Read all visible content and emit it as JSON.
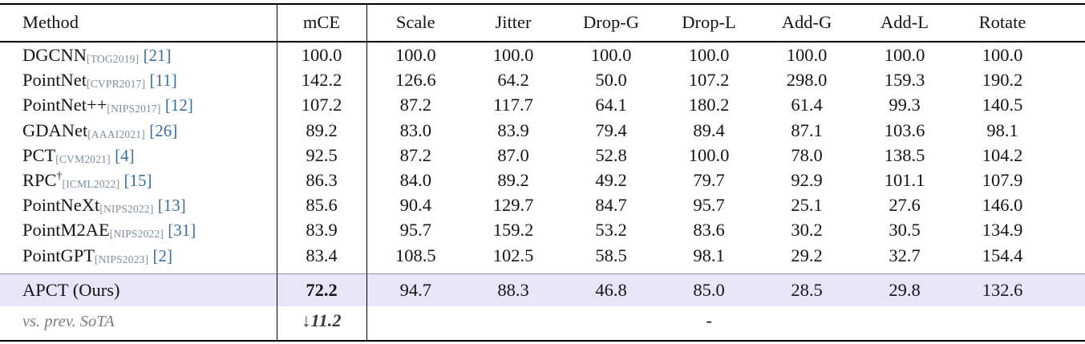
{
  "colors": {
    "cite-color": "#3c6e9f",
    "venue-color": "#7d8c9d",
    "highlight": "#e9e5f8"
  },
  "table": {
    "headers": [
      "Method",
      "mCE",
      "Scale",
      "Jitter",
      "Drop-G",
      "Drop-L",
      "Add-G",
      "Add-L",
      "Rotate"
    ],
    "rows": [
      {
        "method": "DGCNN",
        "venue": "[TOG2019]",
        "cite": "[21]",
        "values": [
          "100.0",
          "100.0",
          "100.0",
          "100.0",
          "100.0",
          "100.0",
          "100.0",
          "100.0"
        ]
      },
      {
        "method": "PointNet",
        "venue": "[CVPR2017]",
        "cite": "[11]",
        "values": [
          "142.2",
          "126.6",
          "64.2",
          "50.0",
          "107.2",
          "298.0",
          "159.3",
          "190.2"
        ]
      },
      {
        "method": "PointNet++",
        "venue": "[NIPS2017]",
        "cite": "[12]",
        "values": [
          "107.2",
          "87.2",
          "117.7",
          "64.1",
          "180.2",
          "61.4",
          "99.3",
          "140.5"
        ]
      },
      {
        "method": "GDANet",
        "venue": "[AAAI2021]",
        "cite": "[26]",
        "values": [
          "89.2",
          "83.0",
          "83.9",
          "79.4",
          "89.4",
          "87.1",
          "103.6",
          "98.1"
        ]
      },
      {
        "method": "PCT",
        "venue": "[CVM2021]",
        "cite": "[4]",
        "values": [
          "92.5",
          "87.2",
          "87.0",
          "52.8",
          "100.0",
          "78.0",
          "138.5",
          "104.2"
        ]
      },
      {
        "method": "RPC",
        "sup": "†",
        "venue": "[ICML2022]",
        "cite": "[15]",
        "values": [
          "86.3",
          "84.0",
          "89.2",
          "49.2",
          "79.7",
          "92.9",
          "101.1",
          "107.9"
        ]
      },
      {
        "method": "PointNeXt",
        "venue": "[NIPS2022]",
        "cite": "[13]",
        "values": [
          "85.6",
          "90.4",
          "129.7",
          "84.7",
          "95.7",
          "25.1",
          "27.6",
          "146.0"
        ]
      },
      {
        "method": "PointM2AE",
        "venue": "[NIPS2022]",
        "cite": "[31]",
        "values": [
          "83.9",
          "95.7",
          "159.2",
          "53.2",
          "83.6",
          "30.2",
          "30.5",
          "134.9"
        ]
      },
      {
        "method": "PointGPT",
        "venue": "[NIPS2023]",
        "cite": "[2]",
        "values": [
          "83.4",
          "108.5",
          "102.5",
          "58.5",
          "98.1",
          "29.2",
          "32.7",
          "154.4"
        ]
      }
    ],
    "highlight_row": {
      "method": "APCT (Ours)",
      "values": [
        "72.2",
        "94.7",
        "88.3",
        "46.8",
        "85.0",
        "28.5",
        "29.8",
        "132.6"
      ]
    },
    "sota_row": {
      "label": "vs. prev. SoTA",
      "mce": "↓11.2",
      "rest": "-"
    }
  }
}
